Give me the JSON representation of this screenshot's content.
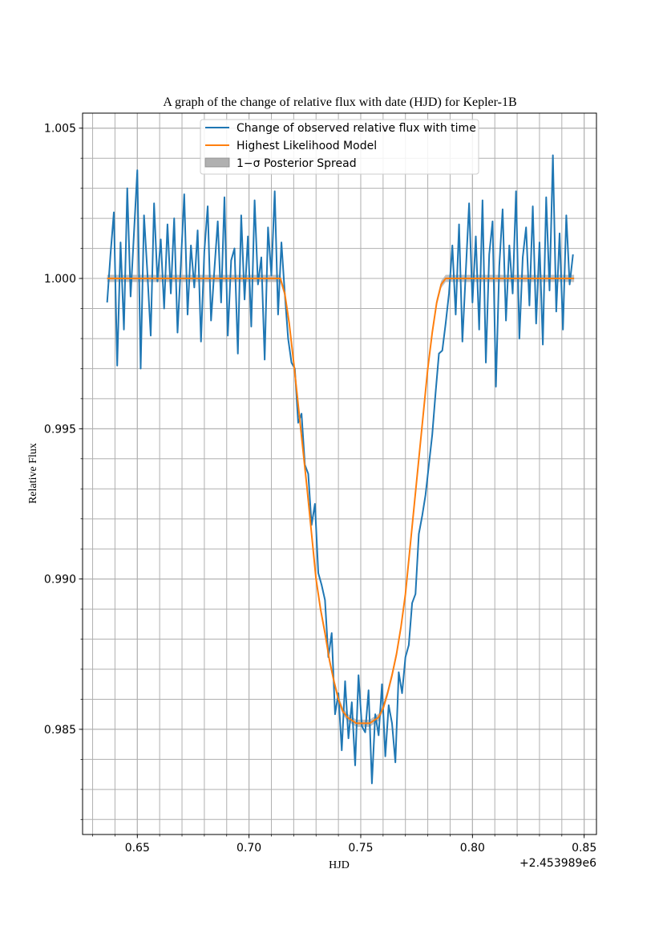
{
  "chart_data": {
    "type": "line",
    "title": "A graph of the change of relative flux with date (HJD) for Kepler-1B",
    "xlabel": "HJD",
    "ylabel": "Relative Flux",
    "x_offset_label": "+2.453989e6",
    "xlim": [
      0.6255,
      0.8555
    ],
    "ylim": [
      0.9815,
      1.0055
    ],
    "x_ticks": [
      0.65,
      0.7,
      0.75,
      0.8,
      0.85
    ],
    "x_tick_labels": [
      "0.65",
      "0.70",
      "0.75",
      "0.80",
      "0.85"
    ],
    "y_ticks": [
      0.985,
      0.99,
      0.995,
      1.0,
      1.005
    ],
    "y_tick_labels": [
      "0.985",
      "0.990",
      "0.995",
      "1.000",
      "1.005"
    ],
    "x_minor_step": 0.01,
    "y_minor_step": 0.001,
    "grid": true,
    "legend_position": "upper-center",
    "colors": {
      "observed": "#1f77b4",
      "model": "#ff7f0e",
      "spread": "#b0b0b0",
      "grid": "#b0b0b0"
    },
    "series": [
      {
        "name": "Change of observed relative flux with time",
        "x": [
          0.6365,
          0.638,
          0.6395,
          0.641,
          0.6425,
          0.644,
          0.6455,
          0.647,
          0.6485,
          0.65,
          0.6515,
          0.653,
          0.6545,
          0.656,
          0.6575,
          0.659,
          0.6605,
          0.662,
          0.6635,
          0.665,
          0.6665,
          0.668,
          0.6695,
          0.671,
          0.6725,
          0.674,
          0.6755,
          0.677,
          0.6785,
          0.68,
          0.6815,
          0.683,
          0.6845,
          0.686,
          0.6875,
          0.689,
          0.6905,
          0.692,
          0.6935,
          0.695,
          0.6965,
          0.698,
          0.6995,
          0.701,
          0.7025,
          0.704,
          0.7055,
          0.707,
          0.7085,
          0.71,
          0.7115,
          0.713,
          0.7145,
          0.716,
          0.7175,
          0.719,
          0.7205,
          0.722,
          0.7235,
          0.725,
          0.7265,
          0.728,
          0.7295,
          0.731,
          0.7325,
          0.734,
          0.7355,
          0.737,
          0.7385,
          0.74,
          0.7415,
          0.743,
          0.7445,
          0.746,
          0.7475,
          0.749,
          0.7505,
          0.752,
          0.7535,
          0.755,
          0.7565,
          0.758,
          0.7595,
          0.761,
          0.7625,
          0.764,
          0.7655,
          0.767,
          0.7685,
          0.77,
          0.7715,
          0.773,
          0.7745,
          0.776,
          0.7775,
          0.779,
          0.7805,
          0.782,
          0.7835,
          0.785,
          0.7865,
          0.788,
          0.7895,
          0.791,
          0.7925,
          0.794,
          0.7955,
          0.797,
          0.7985,
          0.8,
          0.8015,
          0.803,
          0.8045,
          0.806,
          0.8075,
          0.809,
          0.8105,
          0.812,
          0.8135,
          0.815,
          0.8165,
          0.818,
          0.8195,
          0.821,
          0.8225,
          0.824,
          0.8255,
          0.827,
          0.8285,
          0.83,
          0.8315,
          0.833,
          0.8345,
          0.836,
          0.8375,
          0.839,
          0.8405,
          0.842,
          0.8435,
          0.845
        ],
        "y": [
          0.9992,
          1.0008,
          1.0022,
          0.9971,
          1.0012,
          0.9983,
          1.003,
          0.9994,
          1.0015,
          1.0036,
          0.997,
          1.0021,
          1.0002,
          0.9981,
          1.0025,
          0.9999,
          1.0013,
          0.999,
          1.0018,
          0.9995,
          1.002,
          0.9982,
          1.0005,
          1.0028,
          0.9988,
          1.0011,
          0.9997,
          1.0016,
          0.9979,
          1.0009,
          1.0024,
          0.9986,
          1.0003,
          1.0019,
          0.9992,
          1.0027,
          0.9981,
          1.0006,
          1.001,
          0.9975,
          1.0021,
          0.9993,
          1.0014,
          0.9984,
          1.0026,
          0.9998,
          1.0007,
          0.9973,
          1.0017,
          1.0001,
          1.0029,
          0.9988,
          1.0012,
          0.9995,
          0.998,
          0.9972,
          0.997,
          0.9952,
          0.9955,
          0.9938,
          0.9935,
          0.9918,
          0.9925,
          0.9902,
          0.9898,
          0.9893,
          0.9874,
          0.9882,
          0.9855,
          0.9862,
          0.9843,
          0.9866,
          0.9847,
          0.9859,
          0.9838,
          0.9868,
          0.9851,
          0.9849,
          0.9863,
          0.9832,
          0.9855,
          0.9848,
          0.9865,
          0.9841,
          0.9858,
          0.9852,
          0.9839,
          0.9869,
          0.9862,
          0.9874,
          0.9878,
          0.9892,
          0.9895,
          0.9915,
          0.9921,
          0.9928,
          0.9938,
          0.9948,
          0.9962,
          0.9975,
          0.9976,
          0.9985,
          0.9995,
          1.0011,
          0.9988,
          1.0018,
          0.9979,
          1.0002,
          1.0025,
          0.9992,
          1.0014,
          0.9983,
          1.0026,
          0.9972,
          1.0008,
          1.0019,
          0.9964,
          1.0004,
          1.0023,
          0.9986,
          1.0011,
          0.9995,
          1.0029,
          0.998,
          1.0007,
          1.0017,
          0.9991,
          1.0024,
          0.9985,
          1.0012,
          0.9978,
          1.0027,
          0.9996,
          1.0041,
          0.9989,
          1.0015,
          0.9983,
          1.0021,
          0.9998,
          1.0008
        ]
      },
      {
        "name": "Highest Likelihood Model",
        "x": [
          0.6365,
          0.714,
          0.716,
          0.718,
          0.72,
          0.722,
          0.724,
          0.726,
          0.728,
          0.73,
          0.732,
          0.734,
          0.736,
          0.738,
          0.74,
          0.742,
          0.744,
          0.746,
          0.748,
          0.75,
          0.752,
          0.754,
          0.756,
          0.758,
          0.76,
          0.762,
          0.764,
          0.766,
          0.768,
          0.77,
          0.772,
          0.774,
          0.776,
          0.778,
          0.78,
          0.782,
          0.784,
          0.786,
          0.788,
          0.79,
          0.792,
          0.8455
        ],
        "y": [
          1.0,
          1.0,
          0.9995,
          0.9985,
          0.9972,
          0.9958,
          0.9944,
          0.993,
          0.9915,
          0.99,
          0.989,
          0.9882,
          0.9873,
          0.9866,
          0.986,
          0.9856,
          0.9854,
          0.9853,
          0.9852,
          0.9852,
          0.9852,
          0.9852,
          0.9853,
          0.9854,
          0.9857,
          0.9862,
          0.9868,
          0.9875,
          0.9884,
          0.9895,
          0.991,
          0.9925,
          0.994,
          0.9955,
          0.997,
          0.9982,
          0.9992,
          0.9998,
          1.0,
          1.0,
          1.0,
          1.0
        ]
      },
      {
        "name": "1−σ Posterior Spread",
        "spread": 0.00012
      }
    ],
    "legend": [
      {
        "name": "Change of observed relative flux with time"
      },
      {
        "name": "Highest Likelihood Model"
      },
      {
        "name": "1−σ Posterior Spread"
      }
    ]
  }
}
